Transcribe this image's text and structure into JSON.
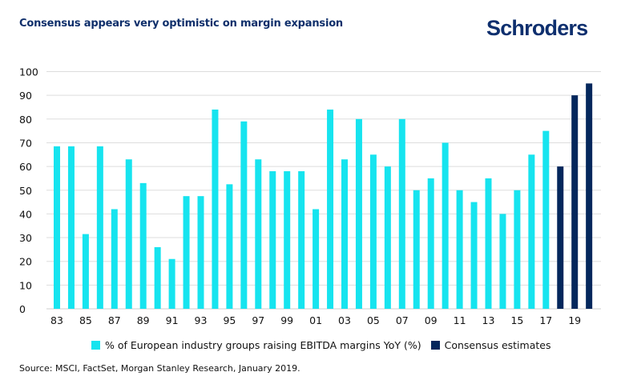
{
  "title": "Consensus appears very optimistic on margin expansion",
  "brand": "Schroders",
  "colors": {
    "actual": "#16e4ef",
    "estimate": "#04275c",
    "title": "#0f2f6b",
    "grid": "#dddddd"
  },
  "legend": [
    {
      "label": "% of European industry groups raising EBITDA margins YoY (%)",
      "color": "#16e4ef"
    },
    {
      "label": "Consensus estimates",
      "color": "#04275c"
    }
  ],
  "source": "Source: MSCI, FactSet, Morgan Stanley Research, January 2019.",
  "chart_data": {
    "type": "bar",
    "title": "Consensus appears very optimistic on margin expansion",
    "xlabel": "",
    "ylabel": "",
    "ylim": [
      0,
      100
    ],
    "yticks": [
      0,
      10,
      20,
      30,
      40,
      50,
      60,
      70,
      80,
      90,
      100
    ],
    "grid": true,
    "legend_position": "bottom",
    "categories": [
      "83",
      "84",
      "85",
      "86",
      "87",
      "88",
      "89",
      "90",
      "91",
      "92",
      "93",
      "94",
      "95",
      "96",
      "97",
      "98",
      "99",
      "00",
      "01",
      "02",
      "03",
      "04",
      "05",
      "06",
      "07",
      "08",
      "09",
      "10",
      "11",
      "12",
      "13",
      "14",
      "15",
      "16",
      "17",
      "18",
      "19",
      "20"
    ],
    "xtick_labels": [
      "83",
      "",
      "85",
      "",
      "87",
      "",
      "89",
      "",
      "91",
      "",
      "93",
      "",
      "95",
      "",
      "97",
      "",
      "99",
      "",
      "01",
      "",
      "03",
      "",
      "05",
      "",
      "07",
      "",
      "09",
      "",
      "11",
      "",
      "13",
      "",
      "15",
      "",
      "17",
      "",
      "19",
      ""
    ],
    "series": [
      {
        "name": "% of European industry groups raising EBITDA margins YoY (%)",
        "color": "#16e4ef",
        "values": [
          68.5,
          68.5,
          31.5,
          68.5,
          42,
          63,
          53,
          26,
          21,
          47.5,
          47.5,
          84,
          52.5,
          79,
          63,
          58,
          58,
          58,
          42,
          84,
          63,
          80,
          65,
          60,
          80,
          50,
          55,
          70,
          50,
          45,
          55,
          40,
          50,
          65,
          75,
          null,
          null,
          null
        ]
      },
      {
        "name": "Consensus estimates",
        "color": "#04275c",
        "values": [
          null,
          null,
          null,
          null,
          null,
          null,
          null,
          null,
          null,
          null,
          null,
          null,
          null,
          null,
          null,
          null,
          null,
          null,
          null,
          null,
          null,
          null,
          null,
          null,
          null,
          null,
          null,
          null,
          null,
          null,
          null,
          null,
          null,
          null,
          null,
          60,
          90,
          95
        ]
      }
    ]
  }
}
